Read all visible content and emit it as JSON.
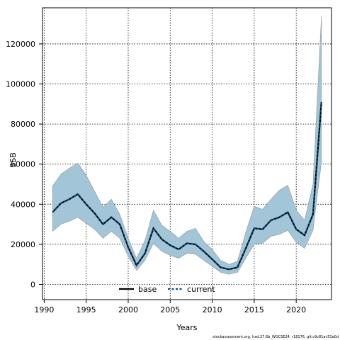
{
  "chart_data": {
    "type": "line",
    "xlabel": "Years",
    "ylabel": "SSB",
    "xlim": [
      1989.8,
      2024.2
    ],
    "ylim": [
      -7600,
      138000
    ],
    "xticks": [
      1990,
      1995,
      2000,
      2005,
      2010,
      2015,
      2020
    ],
    "yticks": [
      0,
      20000,
      40000,
      60000,
      80000,
      100000,
      120000
    ],
    "grid": true,
    "legend_position": "bottom-center",
    "x": [
      1991,
      1992,
      1993,
      1994,
      1995,
      1996,
      1997,
      1998,
      1999,
      2000,
      2001,
      2002,
      2003,
      2004,
      2005,
      2006,
      2007,
      2008,
      2009,
      2010,
      2011,
      2012,
      2013,
      2014,
      2015,
      2016,
      2017,
      2018,
      2019,
      2020,
      2021,
      2022,
      2023
    ],
    "series": [
      {
        "name": "base",
        "values": [
          36000,
          40500,
          42500,
          45000,
          40000,
          35500,
          30000,
          33500,
          30000,
          18500,
          9500,
          15500,
          28000,
          22500,
          19500,
          17500,
          20500,
          20000,
          16500,
          12500,
          8500,
          7500,
          8500,
          18000,
          28000,
          27500,
          32000,
          33500,
          36000,
          27500,
          24500,
          35000,
          91000
        ],
        "color": "#000000"
      },
      {
        "name": "current",
        "values": [
          36000,
          40500,
          42500,
          45000,
          40000,
          35500,
          30000,
          33500,
          30000,
          18500,
          9500,
          15500,
          28000,
          22500,
          19500,
          17500,
          20500,
          20000,
          16500,
          12500,
          8500,
          7500,
          8500,
          18000,
          28000,
          27500,
          32000,
          33500,
          36000,
          27500,
          24500,
          35000,
          91000
        ],
        "color": "#0a4b78",
        "ci_lower": [
          26500,
          30000,
          31500,
          33500,
          30500,
          27500,
          23000,
          26500,
          23000,
          14000,
          7000,
          12000,
          20500,
          16500,
          14500,
          13000,
          15500,
          15000,
          12000,
          9000,
          6000,
          5000,
          6000,
          13000,
          20000,
          20500,
          24000,
          25000,
          27000,
          21000,
          18000,
          27000,
          61000
        ],
        "ci_upper": [
          49000,
          55000,
          58000,
          60500,
          54500,
          46500,
          38500,
          42500,
          35000,
          23000,
          13000,
          22000,
          37000,
          29500,
          26500,
          23000,
          26500,
          28000,
          21500,
          17500,
          12000,
          10000,
          11500,
          26000,
          39000,
          37500,
          42500,
          47000,
          49500,
          37000,
          32000,
          50000,
          134000
        ],
        "ci_color": "#a3c5d8"
      }
    ],
    "footer": "stockassessment.org, had.27.6b_WGCSE24, r18176, git:c9c81ac53a0d"
  }
}
